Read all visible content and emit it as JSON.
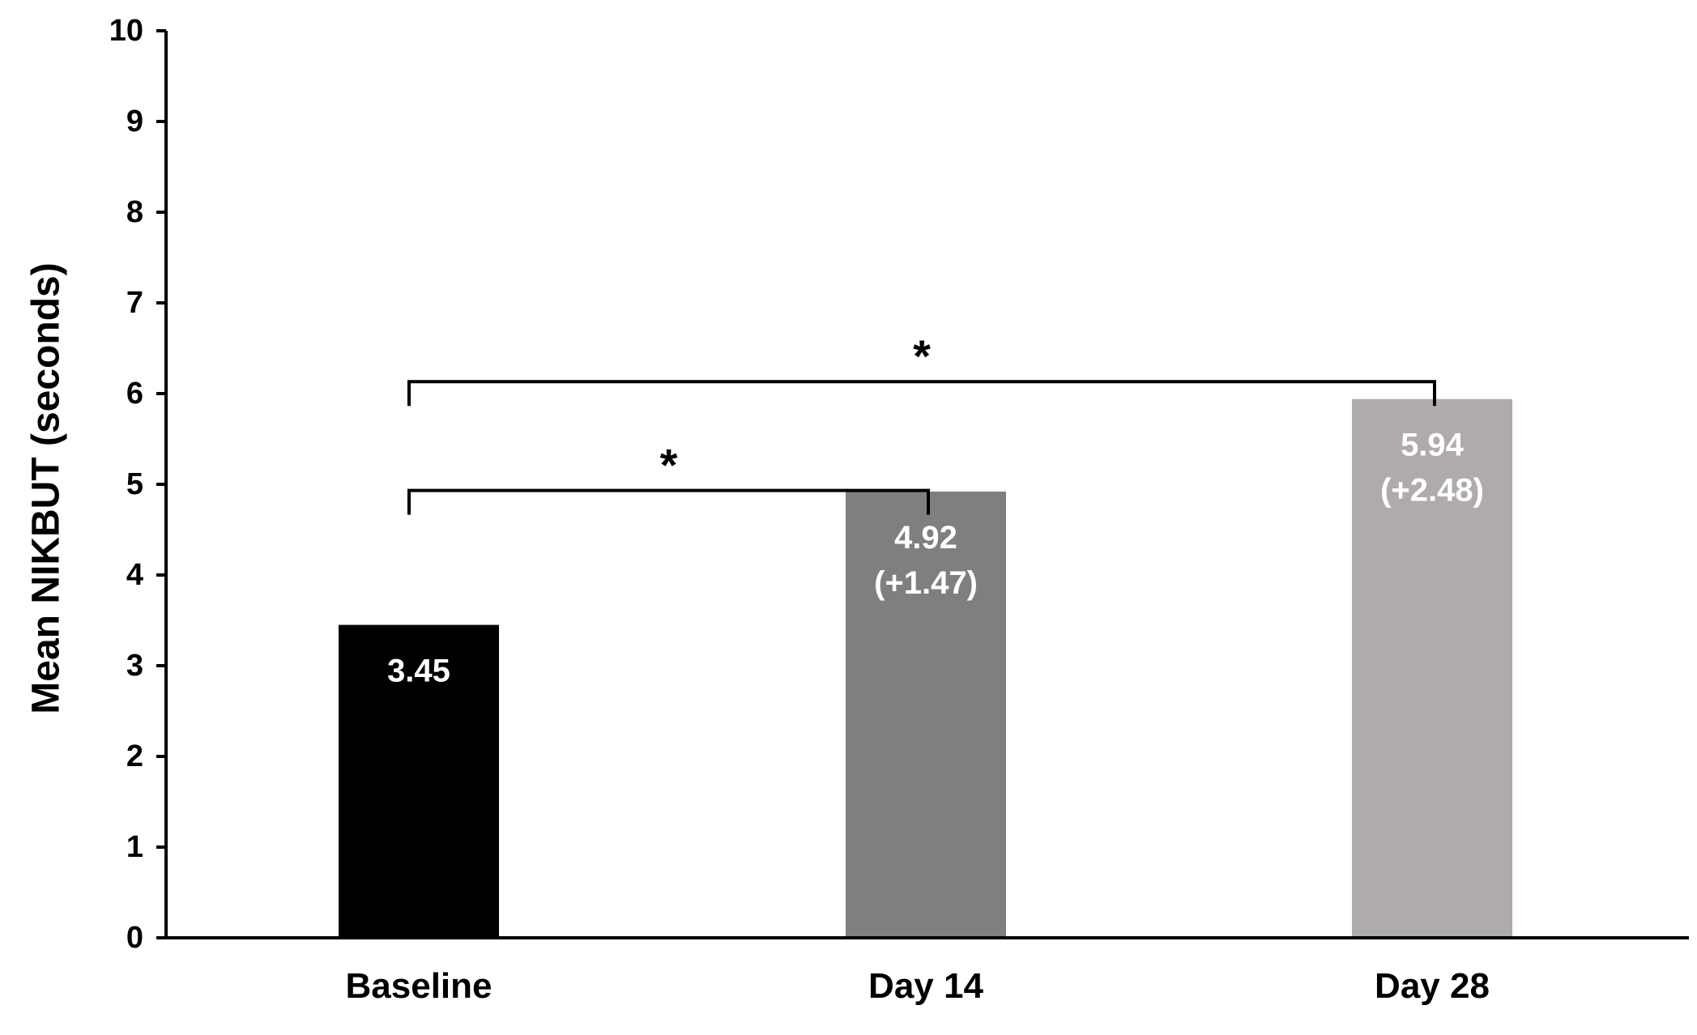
{
  "chart_data": {
    "type": "bar",
    "title": "",
    "xlabel": "",
    "ylabel": "Mean NIKBUT (seconds)",
    "ylim": [
      0,
      10
    ],
    "yticks": [
      0,
      1,
      2,
      3,
      4,
      5,
      6,
      7,
      8,
      9,
      10
    ],
    "grid": false,
    "legend": "none",
    "categories": [
      "Baseline",
      "Day 14",
      "Day 28"
    ],
    "values": [
      3.45,
      4.92,
      5.94
    ],
    "bar_colors": [
      "#000000",
      "#7f7f7f",
      "#afabab"
    ],
    "data_labels": [
      [
        "3.45"
      ],
      [
        "4.92",
        "(+1.47)"
      ],
      [
        "5.94",
        "(+2.48)"
      ]
    ],
    "annotations": [
      {
        "type": "significance-bracket",
        "from": "Baseline",
        "to": "Day 14",
        "y": 5.2,
        "label": "*"
      },
      {
        "type": "significance-bracket",
        "from": "Baseline",
        "to": "Day 28",
        "y": 6.4,
        "label": "*"
      }
    ]
  }
}
